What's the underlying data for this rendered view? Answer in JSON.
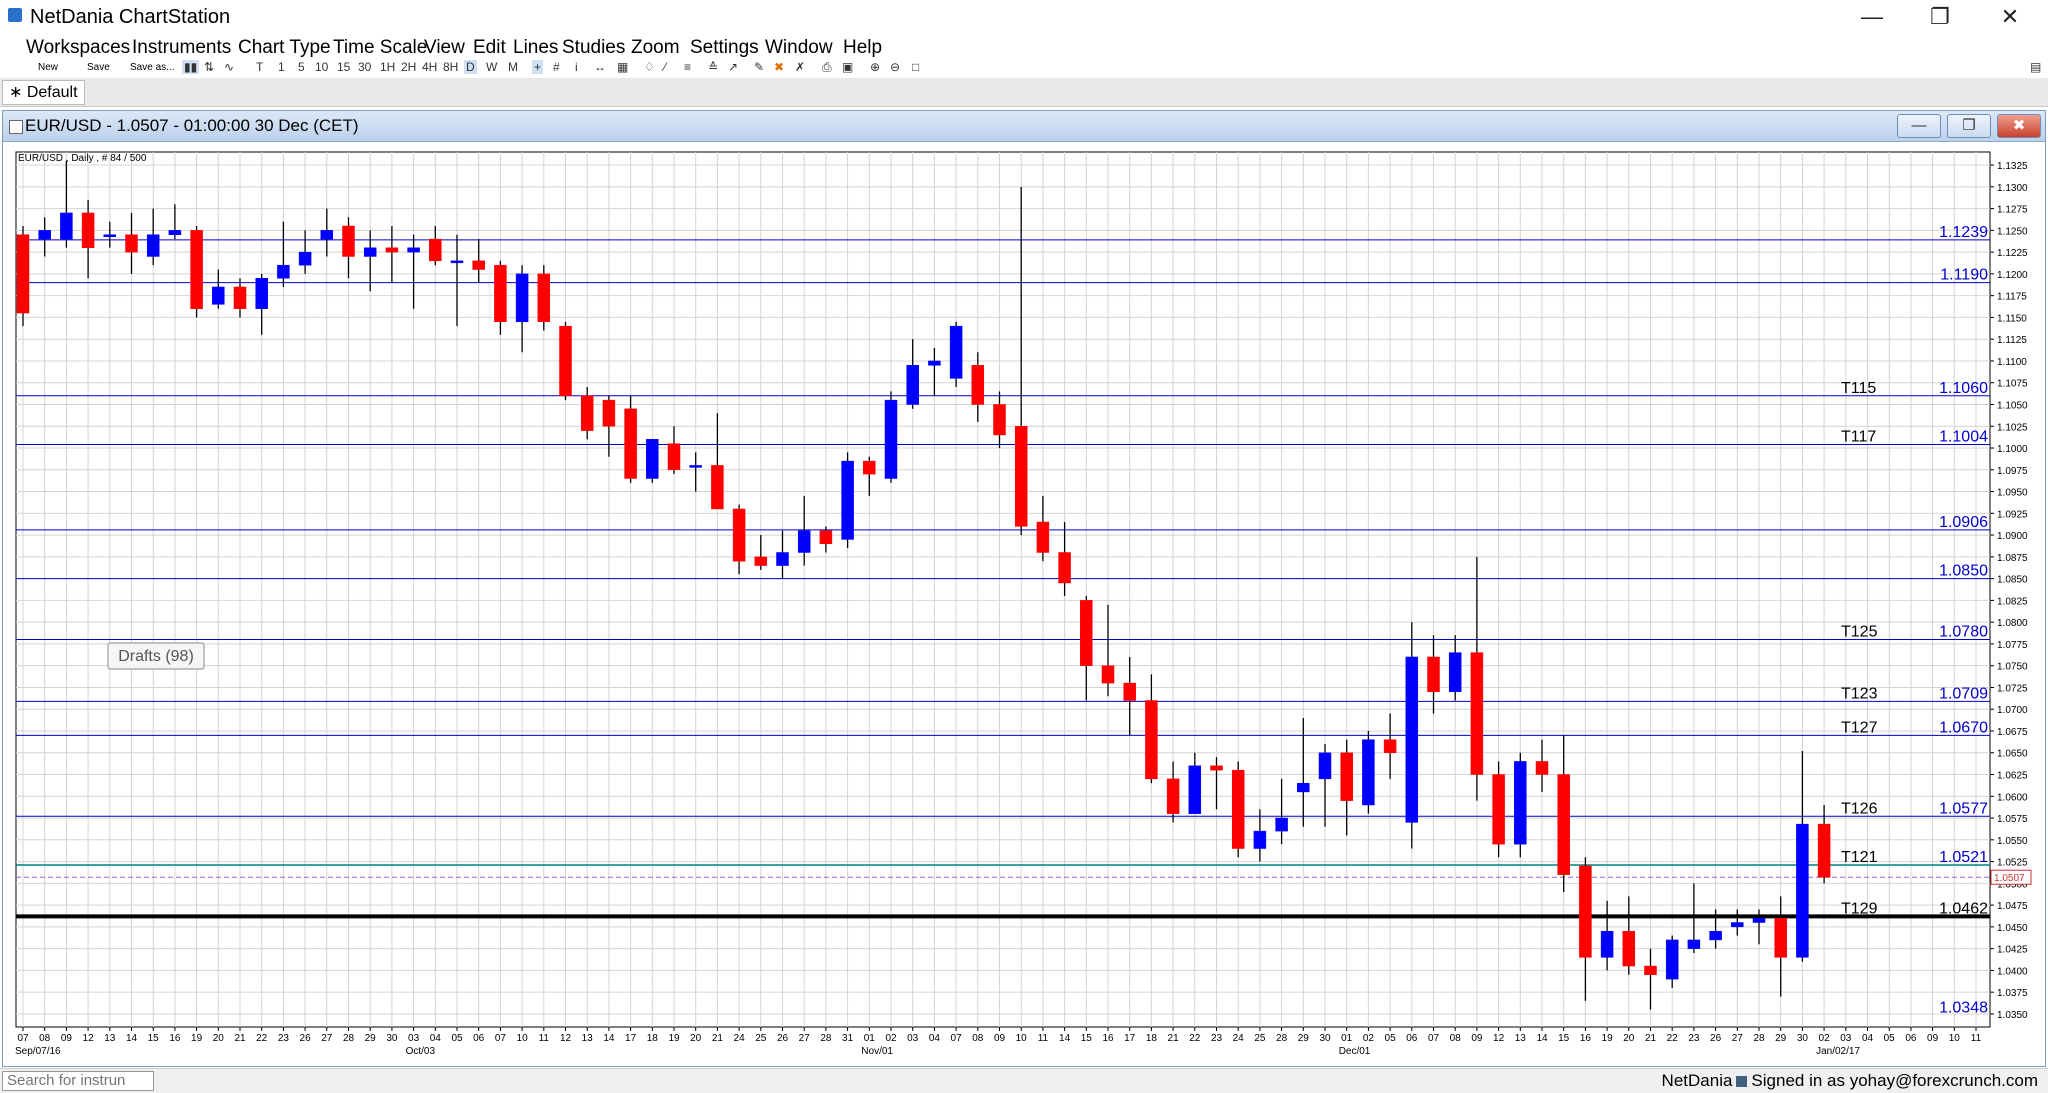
{
  "app": {
    "title": "NetDania ChartStation"
  },
  "window_controls": {
    "minimize": "—",
    "restore": "❐",
    "close": "✕"
  },
  "menu": [
    "Workspaces",
    "Instruments",
    "Chart Type",
    "Time Scale",
    "View",
    "Edit",
    "Lines",
    "Studies",
    "Zoom",
    "Settings",
    "Window",
    "Help"
  ],
  "toolbar": {
    "file_labels": [
      "New",
      "Save",
      "Save as..."
    ],
    "timescale": [
      "T",
      "1",
      "5",
      "10",
      "15",
      "30",
      "1H",
      "2H",
      "4H",
      "8H",
      "D",
      "W",
      "M"
    ],
    "selected_timescale": "D"
  },
  "workspace_tab": "∗ Default",
  "chart_window": {
    "title": "EUR/USD - 1.0507 - 01:00:00  30 Dec (CET)",
    "info": "EUR/USD , Daily , # 84 / 500",
    "drafts": "Drafts (98)",
    "buttons": {
      "minimize": "—",
      "restore": "❐",
      "close": "✖"
    }
  },
  "chart_data": {
    "type": "candlestick",
    "instrument": "EUR/USD",
    "interval": "Daily",
    "ylim": [
      1.0335,
      1.134
    ],
    "ytick_labels": [
      "1.1325",
      "1.1300",
      "1.1275",
      "1.1250",
      "1.1225",
      "1.1200",
      "1.1175",
      "1.1150",
      "1.1125",
      "1.1100",
      "1.1075",
      "1.1050",
      "1.1025",
      "1.1000",
      "1.0975",
      "1.0950",
      "1.0925",
      "1.0900",
      "1.0875",
      "1.0850",
      "1.0825",
      "1.0800",
      "1.0775",
      "1.0750",
      "1.0725",
      "1.0700",
      "1.0675",
      "1.0650",
      "1.0625",
      "1.0600",
      "1.0575",
      "1.0550",
      "1.0525",
      "1.0500",
      "1.0475",
      "1.0450",
      "1.0425",
      "1.0400",
      "1.0375",
      "1.0350"
    ],
    "current_price": "1.0507",
    "day_labels": [
      "07",
      "08",
      "09",
      "12",
      "13",
      "14",
      "15",
      "16",
      "19",
      "20",
      "21",
      "22",
      "23",
      "26",
      "27",
      "28",
      "29",
      "30",
      "03",
      "04",
      "05",
      "06",
      "07",
      "10",
      "11",
      "12",
      "13",
      "14",
      "17",
      "18",
      "19",
      "20",
      "21",
      "24",
      "25",
      "26",
      "27",
      "28",
      "31",
      "01",
      "02",
      "03",
      "04",
      "07",
      "08",
      "09",
      "10",
      "11",
      "14",
      "15",
      "16",
      "17",
      "18",
      "21",
      "22",
      "23",
      "24",
      "25",
      "28",
      "29",
      "30",
      "01",
      "02",
      "05",
      "06",
      "07",
      "08",
      "09",
      "12",
      "13",
      "14",
      "15",
      "16",
      "19",
      "20",
      "21",
      "22",
      "23",
      "26",
      "27",
      "28",
      "29",
      "30",
      "02",
      "03",
      "04",
      "05",
      "06",
      "09",
      "10",
      "11"
    ],
    "month_labels": [
      {
        "index": 0,
        "label": "Sep/07/16"
      },
      {
        "index": 18,
        "label": "Oct/03"
      },
      {
        "index": 39,
        "label": "Nov/01"
      },
      {
        "index": 61,
        "label": "Dec/01"
      },
      {
        "index": 83,
        "label": "Jan/02/17"
      }
    ],
    "candles": [
      {
        "o": 1.1245,
        "h": 1.1255,
        "l": 1.114,
        "c": 1.1155
      },
      {
        "o": 1.124,
        "h": 1.1265,
        "l": 1.122,
        "c": 1.125
      },
      {
        "o": 1.124,
        "h": 1.133,
        "l": 1.123,
        "c": 1.127
      },
      {
        "o": 1.127,
        "h": 1.1285,
        "l": 1.1195,
        "c": 1.123
      },
      {
        "o": 1.1245,
        "h": 1.126,
        "l": 1.123,
        "c": 1.1245
      },
      {
        "o": 1.1245,
        "h": 1.127,
        "l": 1.12,
        "c": 1.1225
      },
      {
        "o": 1.122,
        "h": 1.1275,
        "l": 1.121,
        "c": 1.1245
      },
      {
        "o": 1.1245,
        "h": 1.128,
        "l": 1.124,
        "c": 1.125
      },
      {
        "o": 1.125,
        "h": 1.1255,
        "l": 1.115,
        "c": 1.116
      },
      {
        "o": 1.1165,
        "h": 1.1205,
        "l": 1.116,
        "c": 1.1185
      },
      {
        "o": 1.1185,
        "h": 1.1195,
        "l": 1.115,
        "c": 1.116
      },
      {
        "o": 1.116,
        "h": 1.12,
        "l": 1.113,
        "c": 1.1195
      },
      {
        "o": 1.1195,
        "h": 1.126,
        "l": 1.1185,
        "c": 1.121
      },
      {
        "o": 1.121,
        "h": 1.125,
        "l": 1.12,
        "c": 1.1225
      },
      {
        "o": 1.124,
        "h": 1.1275,
        "l": 1.122,
        "c": 1.125
      },
      {
        "o": 1.1255,
        "h": 1.1265,
        "l": 1.1195,
        "c": 1.122
      },
      {
        "o": 1.122,
        "h": 1.125,
        "l": 1.118,
        "c": 1.123
      },
      {
        "o": 1.123,
        "h": 1.1255,
        "l": 1.119,
        "c": 1.1225
      },
      {
        "o": 1.1225,
        "h": 1.1245,
        "l": 1.116,
        "c": 1.123
      },
      {
        "o": 1.124,
        "h": 1.1255,
        "l": 1.121,
        "c": 1.1215
      },
      {
        "o": 1.1215,
        "h": 1.1245,
        "l": 1.114,
        "c": 1.1215
      },
      {
        "o": 1.1215,
        "h": 1.124,
        "l": 1.119,
        "c": 1.1205
      },
      {
        "o": 1.121,
        "h": 1.1215,
        "l": 1.113,
        "c": 1.1145
      },
      {
        "o": 1.1145,
        "h": 1.121,
        "l": 1.111,
        "c": 1.12
      },
      {
        "o": 1.12,
        "h": 1.121,
        "l": 1.1135,
        "c": 1.1145
      },
      {
        "o": 1.114,
        "h": 1.1145,
        "l": 1.1055,
        "c": 1.106
      },
      {
        "o": 1.106,
        "h": 1.107,
        "l": 1.101,
        "c": 1.102
      },
      {
        "o": 1.1055,
        "h": 1.106,
        "l": 1.099,
        "c": 1.1025
      },
      {
        "o": 1.1045,
        "h": 1.106,
        "l": 1.096,
        "c": 1.0965
      },
      {
        "o": 1.0965,
        "h": 1.101,
        "l": 1.096,
        "c": 1.101
      },
      {
        "o": 1.1005,
        "h": 1.1025,
        "l": 1.097,
        "c": 1.0975
      },
      {
        "o": 1.098,
        "h": 1.0995,
        "l": 1.095,
        "c": 1.098
      },
      {
        "o": 1.098,
        "h": 1.104,
        "l": 1.0935,
        "c": 1.093
      },
      {
        "o": 1.093,
        "h": 1.0935,
        "l": 1.0855,
        "c": 1.087
      },
      {
        "o": 1.0875,
        "h": 1.09,
        "l": 1.086,
        "c": 1.0865
      },
      {
        "o": 1.0865,
        "h": 1.0905,
        "l": 1.085,
        "c": 1.088
      },
      {
        "o": 1.088,
        "h": 1.0945,
        "l": 1.0865,
        "c": 1.0905
      },
      {
        "o": 1.0905,
        "h": 1.091,
        "l": 1.088,
        "c": 1.089
      },
      {
        "o": 1.0895,
        "h": 1.0995,
        "l": 1.0885,
        "c": 1.0985
      },
      {
        "o": 1.0985,
        "h": 1.099,
        "l": 1.0945,
        "c": 1.097
      },
      {
        "o": 1.0965,
        "h": 1.1065,
        "l": 1.096,
        "c": 1.1055
      },
      {
        "o": 1.105,
        "h": 1.1125,
        "l": 1.1045,
        "c": 1.1095
      },
      {
        "o": 1.1095,
        "h": 1.1115,
        "l": 1.106,
        "c": 1.11
      },
      {
        "o": 1.108,
        "h": 1.1145,
        "l": 1.107,
        "c": 1.114
      },
      {
        "o": 1.1095,
        "h": 1.111,
        "l": 1.103,
        "c": 1.105
      },
      {
        "o": 1.105,
        "h": 1.1065,
        "l": 1.1,
        "c": 1.1015
      },
      {
        "o": 1.1025,
        "h": 1.13,
        "l": 1.09,
        "c": 1.091
      },
      {
        "o": 1.0915,
        "h": 1.0945,
        "l": 1.087,
        "c": 1.088
      },
      {
        "o": 1.088,
        "h": 1.0915,
        "l": 1.083,
        "c": 1.0845
      },
      {
        "o": 1.0825,
        "h": 1.083,
        "l": 1.071,
        "c": 1.075
      },
      {
        "o": 1.075,
        "h": 1.082,
        "l": 1.0715,
        "c": 1.073
      },
      {
        "o": 1.073,
        "h": 1.076,
        "l": 1.067,
        "c": 1.071
      },
      {
        "o": 1.071,
        "h": 1.074,
        "l": 1.0615,
        "c": 1.062
      },
      {
        "o": 1.062,
        "h": 1.064,
        "l": 1.057,
        "c": 1.058
      },
      {
        "o": 1.058,
        "h": 1.065,
        "l": 1.058,
        "c": 1.0635
      },
      {
        "o": 1.0635,
        "h": 1.0645,
        "l": 1.0585,
        "c": 1.063
      },
      {
        "o": 1.063,
        "h": 1.064,
        "l": 1.053,
        "c": 1.054
      },
      {
        "o": 1.054,
        "h": 1.0585,
        "l": 1.0525,
        "c": 1.056
      },
      {
        "o": 1.056,
        "h": 1.062,
        "l": 1.0545,
        "c": 1.0575
      },
      {
        "o": 1.0605,
        "h": 1.069,
        "l": 1.0565,
        "c": 1.0615
      },
      {
        "o": 1.062,
        "h": 1.066,
        "l": 1.0565,
        "c": 1.065
      },
      {
        "o": 1.065,
        "h": 1.0665,
        "l": 1.0555,
        "c": 1.0595
      },
      {
        "o": 1.059,
        "h": 1.0675,
        "l": 1.058,
        "c": 1.0665
      },
      {
        "o": 1.0665,
        "h": 1.0695,
        "l": 1.062,
        "c": 1.065
      },
      {
        "o": 1.057,
        "h": 1.08,
        "l": 1.054,
        "c": 1.076
      },
      {
        "o": 1.076,
        "h": 1.0785,
        "l": 1.0695,
        "c": 1.072
      },
      {
        "o": 1.072,
        "h": 1.0785,
        "l": 1.071,
        "c": 1.0765
      },
      {
        "o": 1.0765,
        "h": 1.0875,
        "l": 1.0595,
        "c": 1.0625
      },
      {
        "o": 1.0625,
        "h": 1.064,
        "l": 1.053,
        "c": 1.0545
      },
      {
        "o": 1.0545,
        "h": 1.065,
        "l": 1.053,
        "c": 1.064
      },
      {
        "o": 1.064,
        "h": 1.0665,
        "l": 1.0605,
        "c": 1.0625
      },
      {
        "o": 1.0625,
        "h": 1.067,
        "l": 1.049,
        "c": 1.051
      },
      {
        "o": 1.052,
        "h": 1.053,
        "l": 1.0365,
        "c": 1.0415
      },
      {
        "o": 1.0415,
        "h": 1.048,
        "l": 1.04,
        "c": 1.0445
      },
      {
        "o": 1.0445,
        "h": 1.0485,
        "l": 1.0395,
        "c": 1.0405
      },
      {
        "o": 1.0405,
        "h": 1.0425,
        "l": 1.0355,
        "c": 1.0395
      },
      {
        "o": 1.039,
        "h": 1.044,
        "l": 1.038,
        "c": 1.0435
      },
      {
        "o": 1.0425,
        "h": 1.05,
        "l": 1.042,
        "c": 1.0435
      },
      {
        "o": 1.0435,
        "h": 1.047,
        "l": 1.0425,
        "c": 1.0445
      },
      {
        "o": 1.045,
        "h": 1.047,
        "l": 1.044,
        "c": 1.0455
      },
      {
        "o": 1.0455,
        "h": 1.047,
        "l": 1.043,
        "c": 1.046
      },
      {
        "o": 1.046,
        "h": 1.0485,
        "l": 1.037,
        "c": 1.0415
      },
      {
        "o": 1.0415,
        "h": 1.0652,
        "l": 1.041,
        "c": 1.0568
      },
      {
        "o": 1.0568,
        "h": 1.059,
        "l": 1.05,
        "c": 1.0507
      }
    ],
    "hlines": [
      {
        "price": 1.1239,
        "label": "1.1239",
        "tag": "",
        "color": "#0000cc",
        "width": 1
      },
      {
        "price": 1.119,
        "label": "1.1190",
        "tag": "",
        "color": "#0000cc",
        "width": 1
      },
      {
        "price": 1.106,
        "label": "1.1060",
        "tag": "T115",
        "color": "#0000cc",
        "width": 1
      },
      {
        "price": 1.1004,
        "label": "1.1004",
        "tag": "T117",
        "color": "#0000cc",
        "width": 1
      },
      {
        "price": 1.0906,
        "label": "1.0906",
        "tag": "",
        "color": "#0000cc",
        "width": 1
      },
      {
        "price": 1.085,
        "label": "1.0850",
        "tag": "",
        "color": "#0000cc",
        "width": 1
      },
      {
        "price": 1.078,
        "label": "1.0780",
        "tag": "T125",
        "color": "#0000cc",
        "width": 1
      },
      {
        "price": 1.0709,
        "label": "1.0709",
        "tag": "T123",
        "color": "#0000cc",
        "width": 1
      },
      {
        "price": 1.067,
        "label": "1.0670",
        "tag": "T127",
        "color": "#0000cc",
        "width": 1
      },
      {
        "price": 1.0577,
        "label": "1.0577",
        "tag": "T126",
        "color": "#0000cc",
        "width": 1
      },
      {
        "price": 1.0521,
        "label": "1.0521",
        "tag": "T121",
        "color": "#008080",
        "width": 1.5
      },
      {
        "price": 1.0462,
        "label": "1.0462",
        "tag": "T129",
        "color": "#000000",
        "width": 4
      },
      {
        "price": 1.0348,
        "label": "1.0348",
        "tag": "",
        "color": "#0000cc",
        "width": 0
      }
    ],
    "colors": {
      "up": "#0000ff",
      "down": "#ff0000",
      "grid": "#d4d4d4",
      "hline": "#0000cc",
      "current": "#cc3333"
    }
  },
  "statusbar": {
    "search_placeholder": "Search for instrun",
    "brand": "NetDania",
    "signed_in": "Signed in as yohay@forexcrunch.com"
  }
}
